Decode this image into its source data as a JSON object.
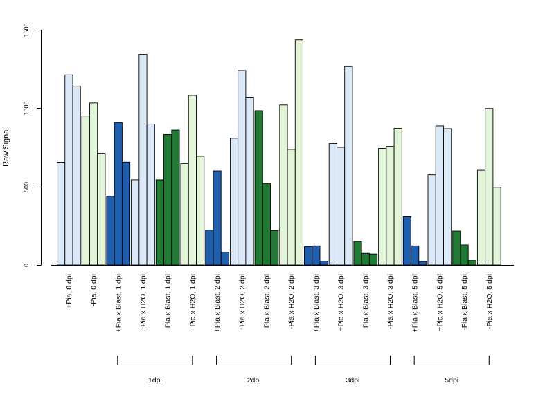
{
  "chart_data": {
    "type": "bar",
    "ylabel": "Raw Signal",
    "ylim": [
      0,
      1500
    ],
    "yticks": [
      0,
      500,
      1000,
      1500
    ],
    "grid": false,
    "legend": "none",
    "colors": {
      "plus_pia_h2o": "#dbe8f7",
      "minus_pia_h2o": "#e3f5d9",
      "plus_pia_blast": "#1f5fae",
      "minus_pia_blast": "#217a34",
      "outline": "#000000"
    },
    "groups": [
      {
        "label": "+Pia, 0 dpi",
        "color": "plus_pia_h2o",
        "values": [
          655,
          1212,
          1140
        ]
      },
      {
        "label": "-Pia, 0 dpi",
        "color": "minus_pia_h2o",
        "values": [
          950,
          1033,
          712
        ]
      },
      {
        "label": "+Pia x Blast, 1 dpi",
        "color": "plus_pia_blast",
        "values": [
          438,
          908,
          656
        ]
      },
      {
        "label": "+Pia x H2O, 1 dpi",
        "color": "plus_pia_h2o",
        "values": [
          543,
          1343,
          898
        ]
      },
      {
        "label": "-Pia x Blast, 1 dpi",
        "color": "minus_pia_blast",
        "values": [
          543,
          832,
          860
        ]
      },
      {
        "label": "-Pia x H2O, 1 dpi",
        "color": "minus_pia_h2o",
        "values": [
          647,
          1081,
          693
        ]
      },
      {
        "label": "+Pia x Blast, 2 dpi",
        "color": "plus_pia_blast",
        "values": [
          222,
          600,
          82
        ]
      },
      {
        "label": "+Pia x H2O, 2 dpi",
        "color": "plus_pia_h2o",
        "values": [
          808,
          1240,
          1070
        ]
      },
      {
        "label": "-Pia x Blast, 2 dpi",
        "color": "minus_pia_blast",
        "values": [
          984,
          520,
          218
        ]
      },
      {
        "label": "-Pia x H2O, 2 dpi",
        "color": "minus_pia_h2o",
        "values": [
          1020,
          737,
          1435
        ]
      },
      {
        "label": "+Pia x Blast, 3 dpi",
        "color": "plus_pia_blast",
        "values": [
          118,
          122,
          24
        ]
      },
      {
        "label": "+Pia x H2O, 3 dpi",
        "color": "plus_pia_h2o",
        "values": [
          774,
          750,
          1265
        ]
      },
      {
        "label": "-Pia x Blast, 3 dpi",
        "color": "minus_pia_blast",
        "values": [
          150,
          74,
          70
        ]
      },
      {
        "label": "-Pia x H2O, 3 dpi",
        "color": "minus_pia_h2o",
        "values": [
          743,
          756,
          871
        ]
      },
      {
        "label": "+Pia x Blast, 5 dpi",
        "color": "plus_pia_blast",
        "values": [
          307,
          122,
          22
        ]
      },
      {
        "label": "+Pia x H2O, 5 dpi",
        "color": "plus_pia_h2o",
        "values": [
          575,
          887,
          869
        ]
      },
      {
        "label": "-Pia x Blast, 5 dpi",
        "color": "minus_pia_blast",
        "values": [
          216,
          128,
          28
        ]
      },
      {
        "label": "-Pia x H2O, 5 dpi",
        "color": "minus_pia_h2o",
        "values": [
          604,
          998,
          495
        ]
      }
    ],
    "timepoint_brackets": [
      {
        "label": "1dpi",
        "from_group": 2,
        "to_group": 5
      },
      {
        "label": "2dpi",
        "from_group": 6,
        "to_group": 9
      },
      {
        "label": "3dpi",
        "from_group": 10,
        "to_group": 13
      },
      {
        "label": "5dpi",
        "from_group": 14,
        "to_group": 17
      }
    ]
  }
}
